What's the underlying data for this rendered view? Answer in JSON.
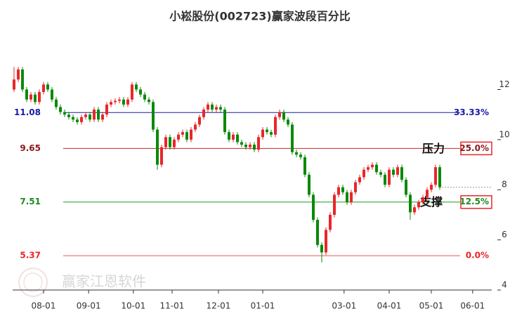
{
  "chart_data": {
    "type": "candlestick",
    "title": "小崧股份(002723)赢家波段百分比",
    "watermark": "赢家江恩软件",
    "up_color": "#e8262a",
    "down_color": "#0a8a0a",
    "open": [
      12.0,
      12.4,
      12.8,
      12.0,
      11.6,
      11.8,
      11.5,
      11.9,
      12.2,
      12.0,
      11.6,
      11.3,
      11.1,
      11.0,
      10.9,
      10.8,
      10.7,
      10.9,
      11.0,
      10.8,
      11.2,
      10.8,
      11.0,
      11.4,
      11.5,
      11.55,
      11.6,
      11.4,
      11.6,
      12.2,
      12.0,
      11.8,
      11.6,
      11.5,
      10.4,
      9.0,
      9.7,
      10.1,
      9.7,
      10.0,
      10.2,
      10.3,
      10.0,
      10.4,
      10.6,
      10.9,
      11.2,
      11.4,
      11.2,
      11.3,
      11.2,
      10.3,
      10.0,
      10.2,
      9.9,
      9.8,
      9.7,
      9.8,
      9.6,
      10.1,
      10.4,
      10.3,
      10.2,
      10.9,
      11.1,
      10.8,
      10.6,
      9.5,
      9.4,
      9.3,
      8.6,
      7.8,
      6.8,
      5.8,
      5.5,
      6.4,
      7.0,
      7.8,
      8.1,
      7.9,
      7.5,
      7.9,
      8.3,
      8.5,
      8.8,
      8.9,
      9.0,
      8.7,
      8.6,
      8.2,
      8.8,
      8.6,
      8.9,
      8.4,
      7.8,
      7.1,
      7.3,
      7.5,
      7.7,
      8.0,
      8.2,
      8.9
    ],
    "high": [
      12.9,
      12.9,
      12.9,
      12.1,
      11.9,
      11.9,
      12.0,
      12.3,
      12.3,
      12.1,
      11.7,
      11.4,
      11.2,
      11.1,
      11.0,
      10.9,
      11.0,
      11.1,
      11.1,
      11.3,
      11.3,
      11.1,
      11.5,
      11.6,
      11.65,
      11.7,
      11.7,
      11.7,
      12.3,
      12.3,
      12.1,
      11.9,
      11.7,
      11.6,
      10.5,
      9.8,
      10.2,
      10.2,
      10.1,
      10.3,
      10.4,
      10.4,
      10.5,
      10.7,
      11.0,
      11.3,
      11.5,
      11.5,
      11.4,
      11.4,
      11.3,
      10.4,
      10.3,
      10.3,
      10.0,
      9.9,
      9.9,
      9.9,
      10.2,
      10.5,
      10.5,
      10.4,
      11.0,
      11.2,
      11.2,
      10.9,
      10.7,
      9.6,
      9.5,
      9.4,
      8.7,
      7.9,
      6.9,
      5.9,
      6.5,
      7.1,
      7.9,
      8.2,
      8.2,
      8.0,
      8.0,
      8.4,
      8.6,
      8.9,
      9.0,
      9.1,
      9.1,
      8.8,
      8.7,
      8.9,
      8.9,
      9.0,
      9.0,
      8.5,
      7.9,
      7.4,
      7.6,
      7.8,
      8.1,
      8.3,
      9.0,
      9.0
    ],
    "low": [
      11.9,
      12.3,
      11.9,
      11.5,
      11.5,
      11.4,
      11.4,
      11.8,
      11.9,
      11.5,
      11.2,
      11.0,
      10.9,
      10.8,
      10.7,
      10.6,
      10.6,
      10.8,
      10.7,
      10.7,
      10.7,
      10.7,
      10.9,
      11.3,
      11.4,
      11.45,
      11.3,
      11.3,
      11.5,
      11.9,
      11.7,
      11.5,
      11.4,
      10.3,
      8.8,
      8.9,
      9.6,
      9.6,
      9.6,
      9.9,
      10.1,
      9.9,
      9.9,
      10.3,
      10.5,
      10.8,
      11.1,
      11.1,
      11.1,
      11.1,
      10.2,
      9.9,
      9.9,
      9.8,
      9.7,
      9.6,
      9.6,
      9.5,
      9.5,
      10.0,
      10.2,
      10.1,
      10.1,
      10.8,
      10.7,
      10.5,
      9.4,
      9.3,
      9.2,
      8.5,
      7.7,
      6.7,
      5.7,
      5.1,
      5.4,
      6.3,
      6.9,
      7.7,
      7.8,
      7.4,
      7.4,
      7.8,
      8.2,
      8.4,
      8.7,
      8.8,
      8.6,
      8.5,
      8.1,
      8.1,
      8.5,
      8.5,
      8.3,
      7.7,
      6.8,
      7.0,
      7.2,
      7.4,
      7.6,
      7.9,
      8.1,
      8.0
    ],
    "close": [
      12.4,
      12.8,
      12.0,
      11.6,
      11.8,
      11.5,
      11.9,
      12.2,
      12.0,
      11.6,
      11.3,
      11.1,
      11.0,
      10.9,
      10.8,
      10.7,
      10.9,
      11.0,
      10.8,
      11.2,
      10.8,
      11.0,
      11.4,
      11.5,
      11.55,
      11.6,
      11.4,
      11.6,
      12.2,
      12.0,
      11.8,
      11.6,
      11.5,
      10.4,
      9.0,
      9.7,
      10.1,
      9.7,
      10.0,
      10.2,
      10.3,
      10.0,
      10.4,
      10.6,
      10.9,
      11.2,
      11.4,
      11.2,
      11.3,
      11.2,
      10.3,
      10.0,
      10.2,
      9.9,
      9.8,
      9.7,
      9.8,
      9.6,
      10.1,
      10.4,
      10.3,
      10.2,
      10.9,
      11.1,
      10.8,
      10.6,
      9.5,
      9.4,
      9.3,
      8.6,
      7.8,
      6.8,
      5.8,
      5.5,
      6.4,
      7.0,
      7.8,
      8.1,
      7.9,
      7.5,
      7.9,
      8.3,
      8.5,
      8.8,
      8.9,
      9.0,
      8.7,
      8.6,
      8.2,
      8.8,
      8.6,
      8.9,
      8.4,
      7.8,
      7.1,
      7.3,
      7.5,
      7.7,
      8.0,
      8.2,
      8.9,
      8.1
    ],
    "xlim": [
      -0.33,
      113.33
    ],
    "xticks": [
      {
        "value": 7,
        "label": "08-01"
      },
      {
        "value": 17.7,
        "label": "09-01"
      },
      {
        "value": 28.3,
        "label": "10-01"
      },
      {
        "value": 37.5,
        "label": "11-01"
      },
      {
        "value": 48.5,
        "label": "12-01"
      },
      {
        "value": 59,
        "label": "01-01"
      },
      {
        "value": 78.3,
        "label": "03-01"
      },
      {
        "value": 89,
        "label": "04-01"
      },
      {
        "value": 99,
        "label": "05-01"
      },
      {
        "value": 108.8,
        "label": "06-01"
      }
    ],
    "ylim": [
      4,
      13.33
    ],
    "yticks": [
      4,
      6,
      8,
      10,
      12
    ],
    "levels": {
      "prices": [
        11.08,
        9.65,
        7.51,
        5.37
      ],
      "percent_labels": [
        "33.33%",
        "25.0%",
        "12.5%",
        "0.0%"
      ],
      "line_colors": [
        "#1a1aa6",
        "#c0282d",
        "#1e9a1e",
        "#f05050"
      ],
      "text_colors": [
        "#1a1aa6",
        "#8b1a1a",
        "#1e8a1e",
        "#e8262a"
      ],
      "boxed": [
        false,
        true,
        true,
        false
      ]
    },
    "annotations": {
      "resistance": "压力",
      "support": "支撑"
    }
  }
}
